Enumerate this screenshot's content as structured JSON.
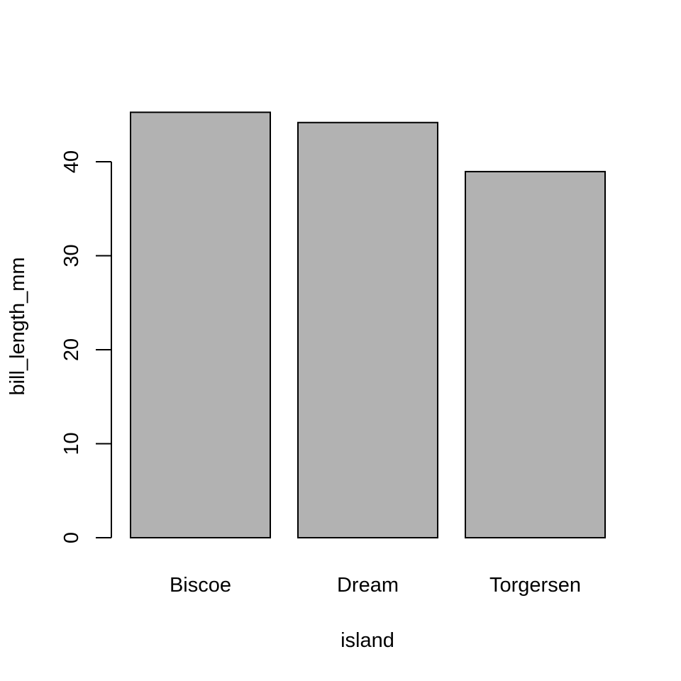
{
  "chart_data": {
    "type": "bar",
    "title": "",
    "xlabel": "island",
    "ylabel": "bill_length_mm",
    "categories": [
      "Biscoe",
      "Dream",
      "Torgersen"
    ],
    "values": [
      45.26,
      44.17,
      38.95
    ],
    "ylim": [
      0,
      47
    ],
    "yticks": [
      "0",
      "10",
      "20",
      "30",
      "40"
    ],
    "bar_fill": "#b2b2b2",
    "bar_stroke": "#000000",
    "grid": false,
    "legend": "none"
  }
}
